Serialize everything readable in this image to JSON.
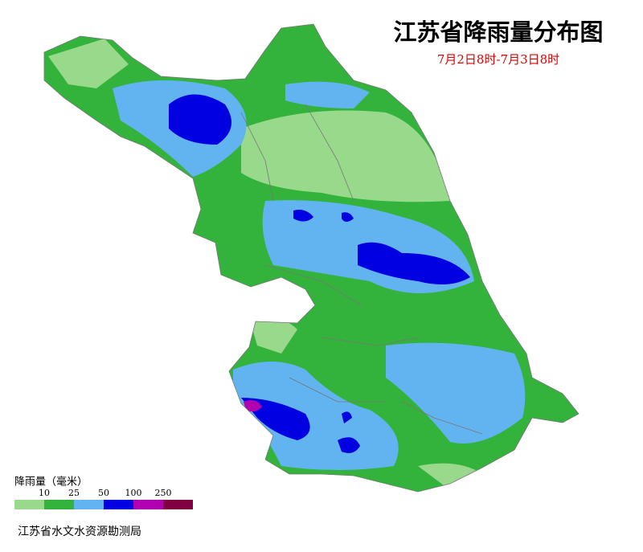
{
  "header": {
    "title": "江苏省降雨量分布图",
    "subtitle": "7月2日8时-7月3日8时"
  },
  "legend": {
    "title": "降雨量（毫米）",
    "breaks": [
      10,
      25,
      50,
      100,
      250
    ],
    "colors": [
      "#98d98b",
      "#33b33b",
      "#62b4f0",
      "#0000e0",
      "#b000b0",
      "#800040"
    ]
  },
  "footer": {
    "source": "江苏省水文水资源勘测局"
  }
}
